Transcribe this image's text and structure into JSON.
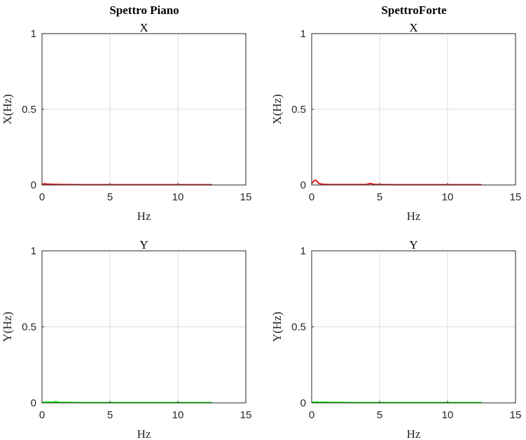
{
  "figure": {
    "columns": [
      {
        "title": "Spettro Piano"
      },
      {
        "title": "SpettroForte"
      }
    ]
  },
  "chart_data": [
    {
      "type": "line",
      "title": "X",
      "xlabel": "Hz",
      "ylabel": "X(Hz)",
      "xlim": [
        0,
        15
      ],
      "ylim": [
        0,
        1
      ],
      "xticks": [
        0,
        5,
        10,
        15
      ],
      "yticks": [
        0,
        0.5,
        1
      ],
      "grid": true,
      "series": [
        {
          "color": "#e41a1c",
          "x": [
            0,
            0.2,
            0.4,
            0.6,
            0.8,
            1,
            1.5,
            2,
            3,
            4,
            5,
            6,
            7,
            8,
            9,
            10,
            11,
            12,
            12.5
          ],
          "y": [
            0.004,
            0.008,
            0.006,
            0.005,
            0.004,
            0.004,
            0.003,
            0.003,
            0.002,
            0.002,
            0.002,
            0.002,
            0.002,
            0.002,
            0.002,
            0.002,
            0.002,
            0.002,
            0.002
          ]
        }
      ]
    },
    {
      "type": "line",
      "title": "X",
      "xlabel": "Hz",
      "ylabel": "X(Hz)",
      "xlim": [
        0,
        15
      ],
      "ylim": [
        0,
        1
      ],
      "xticks": [
        0,
        5,
        10,
        15
      ],
      "yticks": [
        0,
        0.5,
        1
      ],
      "grid": true,
      "series": [
        {
          "color": "#e41a1c",
          "x": [
            0,
            0.1,
            0.2,
            0.3,
            0.4,
            0.5,
            0.6,
            0.8,
            1,
            1.5,
            2,
            3,
            4,
            4.3,
            4.6,
            5,
            6,
            7,
            8,
            9,
            10,
            11,
            12,
            12.5
          ],
          "y": [
            0.01,
            0.02,
            0.03,
            0.03,
            0.025,
            0.012,
            0.008,
            0.005,
            0.004,
            0.003,
            0.003,
            0.003,
            0.003,
            0.01,
            0.004,
            0.003,
            0.002,
            0.002,
            0.002,
            0.002,
            0.002,
            0.002,
            0.002,
            0.002
          ]
        }
      ]
    },
    {
      "type": "line",
      "title": "Y",
      "xlabel": "Hz",
      "ylabel": "Y(Hz)",
      "xlim": [
        0,
        15
      ],
      "ylim": [
        0,
        1
      ],
      "xticks": [
        0,
        5,
        10,
        15
      ],
      "yticks": [
        0,
        0.5,
        1
      ],
      "grid": true,
      "series": [
        {
          "color": "#00e600",
          "x": [
            0,
            0.2,
            0.5,
            0.8,
            1,
            1.2,
            1.5,
            2,
            3,
            4,
            5,
            6,
            7,
            8,
            9,
            10,
            11,
            12,
            12.5
          ],
          "y": [
            0.003,
            0.004,
            0.005,
            0.004,
            0.008,
            0.004,
            0.003,
            0.003,
            0.002,
            0.002,
            0.002,
            0.002,
            0.002,
            0.002,
            0.002,
            0.002,
            0.002,
            0.002,
            0.002
          ]
        }
      ]
    },
    {
      "type": "line",
      "title": "Y",
      "xlabel": "Hz",
      "ylabel": "Y(Hz)",
      "xlim": [
        0,
        15
      ],
      "ylim": [
        0,
        1
      ],
      "xticks": [
        0,
        5,
        10,
        15
      ],
      "yticks": [
        0,
        0.5,
        1
      ],
      "grid": true,
      "series": [
        {
          "color": "#00e600",
          "x": [
            0,
            0.3,
            0.6,
            1,
            1.5,
            2,
            3,
            4,
            5,
            6,
            7,
            8,
            9,
            10,
            11,
            12,
            12.5
          ],
          "y": [
            0.003,
            0.005,
            0.004,
            0.004,
            0.003,
            0.003,
            0.002,
            0.002,
            0.002,
            0.002,
            0.002,
            0.002,
            0.002,
            0.002,
            0.002,
            0.002,
            0.002
          ]
        }
      ]
    }
  ]
}
